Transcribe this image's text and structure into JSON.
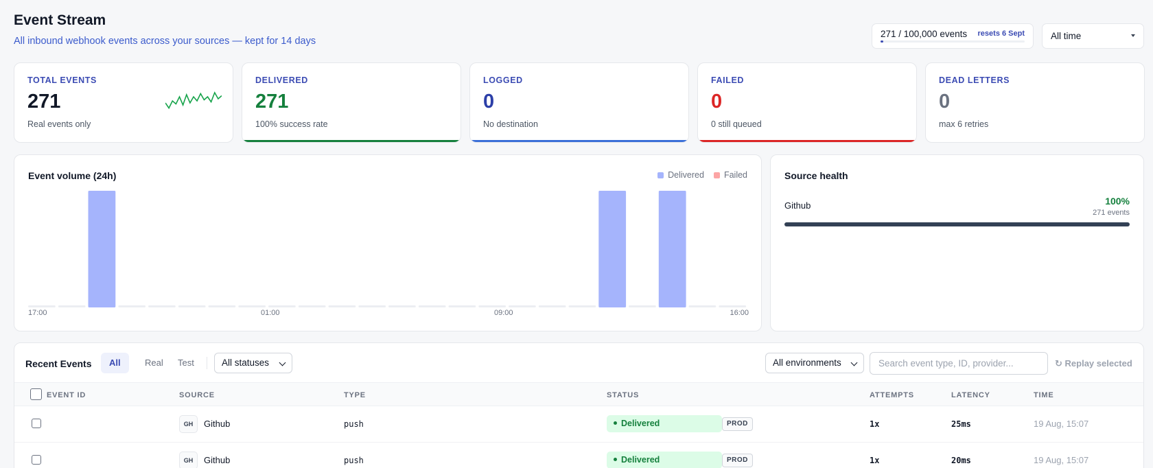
{
  "header": {
    "title": "Event Stream",
    "subtitle": "All inbound webhook events across your sources — kept for 14 days",
    "usage_text": "271 / 100,000 events",
    "usage_reset": "resets 6 Sept",
    "usage_fraction": 0.00271,
    "range_selected": "All time"
  },
  "stats": {
    "total": {
      "label": "TOTAL EVENTS",
      "value": "271",
      "sub": "Real events only"
    },
    "delivered": {
      "label": "DELIVERED",
      "value": "271",
      "sub": "100% success rate",
      "color": "#15803d"
    },
    "logged": {
      "label": "LOGGED",
      "value": "0",
      "sub": "No destination",
      "color": "#3b6fd8"
    },
    "failed": {
      "label": "FAILED",
      "value": "0",
      "sub": "0 still queued",
      "color": "#dc2626"
    },
    "dead": {
      "label": "DEAD LETTERS",
      "value": "0",
      "sub": "max 6 retries",
      "color": "#6b7280"
    }
  },
  "sparkline": [
    40,
    15,
    50,
    35,
    70,
    30,
    80,
    40,
    70,
    50,
    85,
    55,
    70,
    45,
    90,
    60,
    75
  ],
  "chart_data": {
    "type": "bar",
    "title": "Event volume (24h)",
    "legend": [
      "Delivered",
      "Failed"
    ],
    "tick_labels": [
      "17:00",
      "01:00",
      "09:00",
      "16:00"
    ],
    "series": [
      {
        "name": "Delivered",
        "color": "#a5b4fc",
        "values": [
          0,
          0,
          1,
          0,
          0,
          0,
          0,
          0,
          0,
          0,
          0,
          0,
          0,
          0,
          0,
          0,
          0,
          0,
          0,
          1,
          0,
          1,
          0,
          0
        ]
      },
      {
        "name": "Failed",
        "color": "#fca5a5",
        "values": [
          0,
          0,
          0,
          0,
          0,
          0,
          0,
          0,
          0,
          0,
          0,
          0,
          0,
          0,
          0,
          0,
          0,
          0,
          0,
          0,
          0,
          0,
          0,
          0
        ]
      }
    ],
    "ylim": [
      0,
      1
    ],
    "grid": false,
    "legend_position": "top-right"
  },
  "health": {
    "title": "Source health",
    "source": "Github",
    "percent": "100%",
    "events": "271 events",
    "fraction": 1
  },
  "events": {
    "title": "Recent Events",
    "tabs": [
      "All",
      "Real",
      "Test"
    ],
    "status_filter": "All statuses",
    "env_filter": "All environments",
    "search_placeholder": "Search event type, ID, provider...",
    "replay": "Replay selected",
    "columns": [
      "EVENT ID",
      "SOURCE",
      "TYPE",
      "STATUS",
      "ATTEMPTS",
      "LATENCY",
      "TIME"
    ],
    "rows": [
      {
        "source_abbr": "GH",
        "source": "Github",
        "type": "push",
        "status": "Delivered",
        "env": "PROD",
        "attempts": "1x",
        "latency": "25ms",
        "time": "19 Aug, 15:07"
      },
      {
        "source_abbr": "GH",
        "source": "Github",
        "type": "push",
        "status": "Delivered",
        "env": "PROD",
        "attempts": "1x",
        "latency": "20ms",
        "time": "19 Aug, 15:07"
      }
    ]
  },
  "colors": {
    "accent": "#3b4bb3",
    "success": "#15803d",
    "info": "#3b6fd8",
    "danger": "#dc2626",
    "muted": "#6b7280"
  }
}
